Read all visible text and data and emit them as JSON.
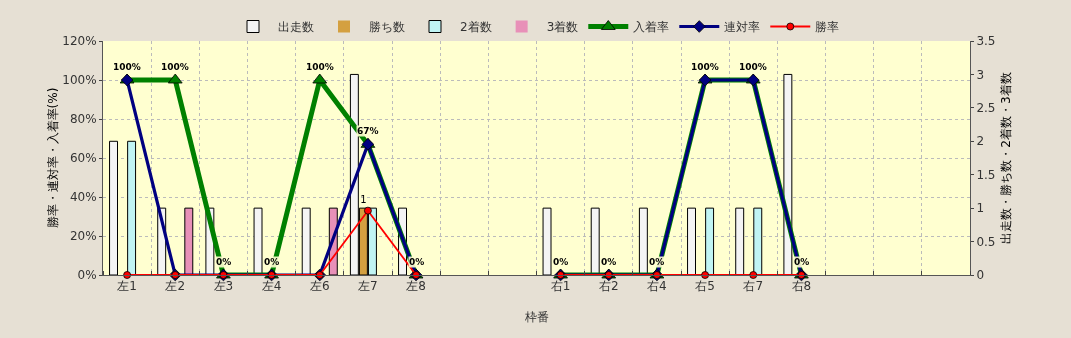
{
  "chart_data": {
    "type": "bar",
    "xlabel": "枠番",
    "ylabel": "勝率・連対率・入着率(%)",
    "y2label": "出走数・勝ち数・2着数・3着数",
    "categories": [
      "左1",
      "左2",
      "左3",
      "左4",
      "左6",
      "左7",
      "左8",
      null,
      null,
      "右1",
      "右2",
      "右4",
      "右5",
      "右7",
      "右8",
      null,
      null,
      null
    ],
    "series": [
      {
        "name": "出走数",
        "axis": "y2",
        "color": "#f4f4f4",
        "values": [
          2,
          1,
          1,
          1,
          1,
          3,
          1,
          null,
          null,
          1,
          1,
          1,
          1,
          1,
          3,
          null,
          null,
          null
        ]
      },
      {
        "name": "勝ち数",
        "axis": "y2",
        "color": "#d4a040",
        "values": [
          0,
          0,
          0,
          0,
          0,
          1,
          0,
          null,
          null,
          0,
          0,
          0,
          0,
          0,
          0,
          null,
          null,
          null
        ],
        "value_labels": [
          null,
          null,
          null,
          null,
          null,
          "1",
          null,
          null,
          null,
          null,
          null,
          null,
          null,
          null,
          null,
          null,
          null,
          null
        ]
      },
      {
        "name": "2着数",
        "axis": "y2",
        "color": "#c0f4f4",
        "values": [
          2,
          0,
          0,
          0,
          0,
          1,
          0,
          null,
          null,
          0,
          0,
          0,
          1,
          1,
          0,
          null,
          null,
          null
        ]
      },
      {
        "name": "3着数",
        "axis": "y2",
        "color": "#e890b8",
        "values": [
          0,
          1,
          0,
          0,
          1,
          0,
          0,
          null,
          null,
          0,
          0,
          0,
          0,
          0,
          0,
          null,
          null,
          null
        ]
      },
      {
        "name": "入着率",
        "type": "line",
        "axis": "y",
        "color": "#008000",
        "marker": "triangle",
        "values": [
          100,
          100,
          0,
          0,
          100,
          67,
          0,
          null,
          null,
          0,
          0,
          0,
          100,
          100,
          0,
          null,
          null,
          null
        ],
        "value_labels": [
          "100%",
          "100%",
          "0%",
          "0%",
          "100%",
          "67%",
          "0%",
          null,
          null,
          "0%",
          "0%",
          "0%",
          "100%",
          "100%",
          "0%",
          null,
          null,
          null
        ]
      },
      {
        "name": "連対率",
        "type": "line",
        "axis": "y",
        "color": "#000080",
        "marker": "diamond",
        "values": [
          100,
          0,
          0,
          0,
          0,
          67,
          0,
          null,
          null,
          0,
          0,
          0,
          100,
          100,
          0,
          null,
          null,
          null
        ]
      },
      {
        "name": "勝率",
        "type": "line",
        "axis": "y",
        "color": "#ff0000",
        "marker": "circle",
        "values": [
          0,
          0,
          0,
          0,
          0,
          33,
          0,
          null,
          null,
          0,
          0,
          0,
          0,
          0,
          0,
          null,
          null,
          null
        ]
      }
    ],
    "ylim": [
      0,
      120
    ],
    "yticks": [
      {
        "value": 0,
        "label": "0%"
      },
      {
        "value": 20,
        "label": "20%"
      },
      {
        "value": 40,
        "label": "40%"
      },
      {
        "value": 60,
        "label": "60%"
      },
      {
        "value": 80,
        "label": "80%"
      },
      {
        "value": 100,
        "label": "100%"
      },
      {
        "value": 120,
        "label": "120%"
      }
    ],
    "y2lim": [
      0,
      3.5
    ],
    "y2ticks": [
      0,
      0.5,
      1,
      1.5,
      2,
      2.5,
      3,
      3.5
    ],
    "grid": true,
    "legend": "top"
  }
}
